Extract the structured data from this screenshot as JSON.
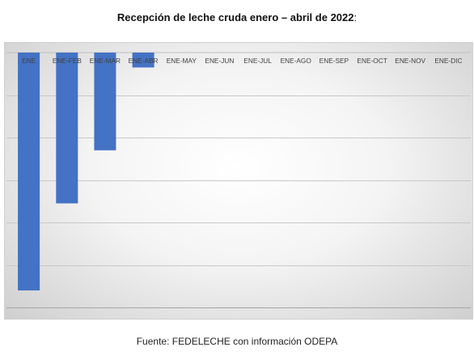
{
  "header": {
    "title": "Recepción de leche cruda enero – abril de 2022",
    "title_suffix": ":"
  },
  "footer": {
    "source": "Fuente: FEDELECHE con información ODEPA"
  },
  "chart_data": {
    "type": "bar",
    "orientation": "downward",
    "categories": [
      "ENE",
      "ENE-FEB",
      "ENE-MAR",
      "ENE-ABR",
      "ENE-MAY",
      "ENE-JUN",
      "ENE-JUL",
      "ENE-AGO",
      "ENE-SEP",
      "ENE-OCT",
      "ENE-NOV",
      "ENE-DIC"
    ],
    "values": [
      -5.6,
      -3.55,
      -2.3,
      -0.35,
      null,
      null,
      null,
      null,
      null,
      null,
      null,
      null
    ],
    "ylim": [
      -6,
      0
    ],
    "gridlines": [
      -1,
      -2,
      -3,
      -4,
      -5,
      -6
    ],
    "grid": true,
    "bar_color": "#4472c4",
    "title": "",
    "xlabel": "",
    "ylabel": ""
  }
}
